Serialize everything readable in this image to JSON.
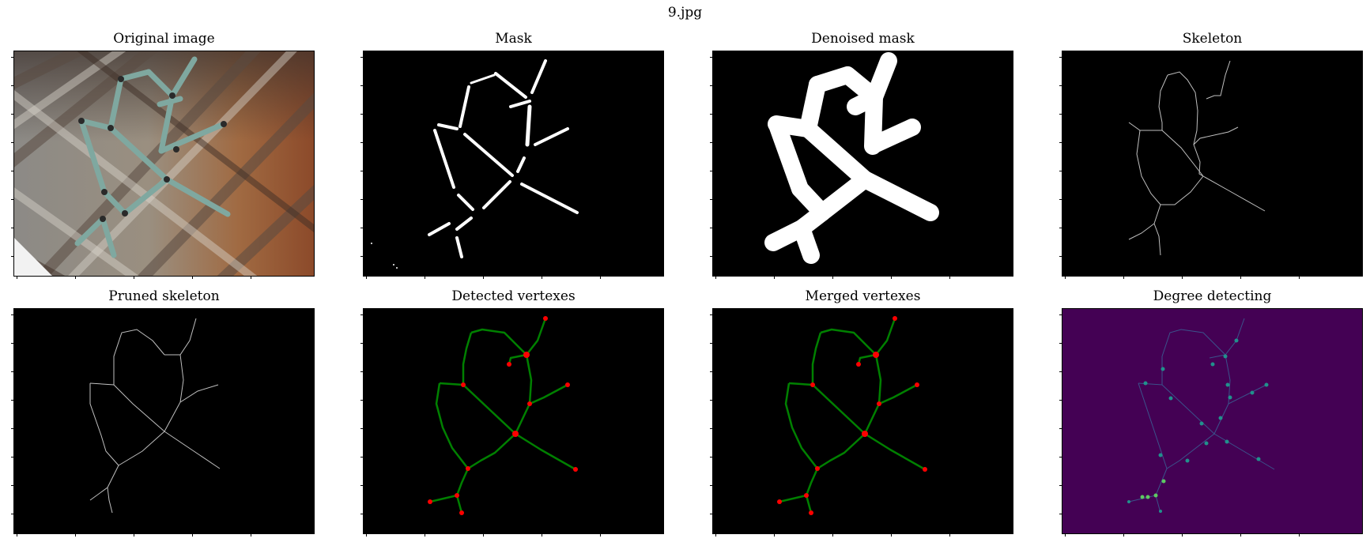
{
  "figure": {
    "suptitle": "9.jpg",
    "panels": [
      {
        "title": "Original image",
        "kind": "photo"
      },
      {
        "title": "Mask",
        "kind": "mask"
      },
      {
        "title": "Denoised mask",
        "kind": "denoised"
      },
      {
        "title": "Skeleton",
        "kind": "skeleton"
      },
      {
        "title": "Pruned skeleton",
        "kind": "pruned"
      },
      {
        "title": "Detected vertexes",
        "kind": "detected"
      },
      {
        "title": "Merged vertexes",
        "kind": "merged"
      },
      {
        "title": "Degree detecting",
        "kind": "degree"
      }
    ]
  },
  "colors": {
    "background": "#000000",
    "mask_fg": "#ffffff",
    "skeleton_line": "#bfbfbf",
    "graph_edge": "#008000",
    "vertex": "#ff0000",
    "degree_bg": "#440154",
    "degree_line": "#3b528b",
    "degree_node_a": "#21918c",
    "degree_node_b": "#5ec962"
  }
}
